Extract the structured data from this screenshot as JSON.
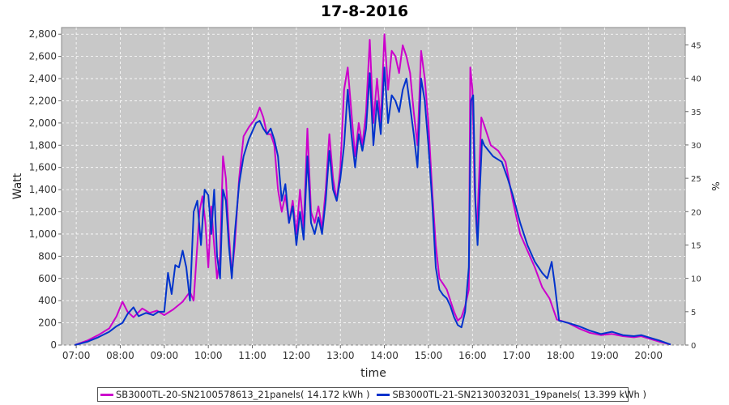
{
  "chart_data": {
    "type": "line",
    "title": "17-8-2016",
    "xlabel": "time",
    "ylabel": "Watt",
    "y2label": "%",
    "x_ticks": [
      "07:00",
      "08:00",
      "09:00",
      "10:00",
      "11:00",
      "12:00",
      "13:00",
      "14:00",
      "15:00",
      "16:00",
      "17:00",
      "18:00",
      "19:00",
      "20:00"
    ],
    "y_ticks": [
      "0",
      "200",
      "400",
      "600",
      "800",
      "1,000",
      "1,200",
      "1,400",
      "1,600",
      "1,800",
      "2,000",
      "2,200",
      "2,400",
      "2,600",
      "2,800"
    ],
    "y2_ticks": [
      "0",
      "5",
      "10",
      "15",
      "20",
      "25",
      "30",
      "35",
      "40",
      "45"
    ],
    "xlim": [
      "06:40",
      "20:50"
    ],
    "ylim": [
      0,
      2860
    ],
    "y2lim": [
      0,
      47.6
    ],
    "grid": true,
    "legend_position": "bottom",
    "background": "#c8c8c8",
    "series": [
      {
        "name": "SB3000TL-20-SN2100578613_21panels( 14.172 kWh )",
        "color": "#cc00cc",
        "points": [
          [
            "06:58",
            0
          ],
          [
            "07:15",
            40
          ],
          [
            "07:30",
            90
          ],
          [
            "07:45",
            150
          ],
          [
            "07:55",
            260
          ],
          [
            "08:03",
            390
          ],
          [
            "08:10",
            300
          ],
          [
            "08:18",
            250
          ],
          [
            "08:30",
            330
          ],
          [
            "08:40",
            290
          ],
          [
            "08:50",
            310
          ],
          [
            "09:00",
            270
          ],
          [
            "09:12",
            320
          ],
          [
            "09:25",
            390
          ],
          [
            "09:35",
            480
          ],
          [
            "09:40",
            400
          ],
          [
            "09:45",
            900
          ],
          [
            "09:48",
            1200
          ],
          [
            "09:52",
            1340
          ],
          [
            "09:56",
            1100
          ],
          [
            "10:00",
            700
          ],
          [
            "10:04",
            1250
          ],
          [
            "10:08",
            900
          ],
          [
            "10:12",
            600
          ],
          [
            "10:16",
            800
          ],
          [
            "10:20",
            1700
          ],
          [
            "10:24",
            1500
          ],
          [
            "10:28",
            1000
          ],
          [
            "10:32",
            640
          ],
          [
            "10:36",
            900
          ],
          [
            "10:42",
            1500
          ],
          [
            "10:48",
            1880
          ],
          [
            "10:55",
            1960
          ],
          [
            "11:05",
            2050
          ],
          [
            "11:10",
            2140
          ],
          [
            "11:15",
            2050
          ],
          [
            "11:20",
            1900
          ],
          [
            "11:25",
            1900
          ],
          [
            "11:30",
            1800
          ],
          [
            "11:35",
            1400
          ],
          [
            "11:40",
            1200
          ],
          [
            "11:45",
            1350
          ],
          [
            "11:50",
            1100
          ],
          [
            "11:55",
            1300
          ],
          [
            "12:00",
            1000
          ],
          [
            "12:05",
            1400
          ],
          [
            "12:10",
            1050
          ],
          [
            "12:15",
            1950
          ],
          [
            "12:20",
            1200
          ],
          [
            "12:25",
            1100
          ],
          [
            "12:30",
            1250
          ],
          [
            "12:35",
            1050
          ],
          [
            "12:40",
            1400
          ],
          [
            "12:45",
            1900
          ],
          [
            "12:50",
            1500
          ],
          [
            "12:55",
            1300
          ],
          [
            "13:00",
            1600
          ],
          [
            "13:05",
            2300
          ],
          [
            "13:10",
            2500
          ],
          [
            "13:15",
            2100
          ],
          [
            "13:20",
            1700
          ],
          [
            "13:25",
            2000
          ],
          [
            "13:30",
            1800
          ],
          [
            "13:35",
            2100
          ],
          [
            "13:40",
            2750
          ],
          [
            "13:45",
            2000
          ],
          [
            "13:50",
            2400
          ],
          [
            "13:55",
            2000
          ],
          [
            "14:00",
            2800
          ],
          [
            "14:05",
            2300
          ],
          [
            "14:10",
            2650
          ],
          [
            "14:15",
            2600
          ],
          [
            "14:20",
            2450
          ],
          [
            "14:25",
            2700
          ],
          [
            "14:30",
            2600
          ],
          [
            "14:35",
            2450
          ],
          [
            "14:40",
            2100
          ],
          [
            "14:45",
            1800
          ],
          [
            "14:50",
            2650
          ],
          [
            "14:55",
            2400
          ],
          [
            "15:00",
            2000
          ],
          [
            "15:05",
            1400
          ],
          [
            "15:10",
            900
          ],
          [
            "15:15",
            600
          ],
          [
            "15:20",
            550
          ],
          [
            "15:25",
            500
          ],
          [
            "15:30",
            400
          ],
          [
            "15:35",
            300
          ],
          [
            "15:40",
            220
          ],
          [
            "15:45",
            250
          ],
          [
            "15:50",
            350
          ],
          [
            "15:55",
            500
          ],
          [
            "15:57",
            2500
          ],
          [
            "16:00",
            2300
          ],
          [
            "16:03",
            1400
          ],
          [
            "16:06",
            1000
          ],
          [
            "16:09",
            1500
          ],
          [
            "16:12",
            2050
          ],
          [
            "16:15",
            2000
          ],
          [
            "16:20",
            1900
          ],
          [
            "16:25",
            1800
          ],
          [
            "16:35",
            1750
          ],
          [
            "16:45",
            1650
          ],
          [
            "16:55",
            1300
          ],
          [
            "17:05",
            1000
          ],
          [
            "17:15",
            850
          ],
          [
            "17:25",
            700
          ],
          [
            "17:35",
            520
          ],
          [
            "17:45",
            420
          ],
          [
            "17:55",
            230
          ],
          [
            "18:10",
            200
          ],
          [
            "18:25",
            150
          ],
          [
            "18:40",
            110
          ],
          [
            "18:55",
            90
          ],
          [
            "19:10",
            100
          ],
          [
            "19:25",
            80
          ],
          [
            "19:40",
            70
          ],
          [
            "19:50",
            80
          ],
          [
            "20:00",
            60
          ],
          [
            "20:15",
            30
          ],
          [
            "20:30",
            5
          ]
        ]
      },
      {
        "name": "SB3000TL-21-SN2130032031_19panels( 13.399 kWh )",
        "color": "#0033cc",
        "points": [
          [
            "06:58",
            0
          ],
          [
            "07:15",
            30
          ],
          [
            "07:30",
            70
          ],
          [
            "07:45",
            120
          ],
          [
            "07:55",
            170
          ],
          [
            "08:03",
            200
          ],
          [
            "08:10",
            280
          ],
          [
            "08:18",
            340
          ],
          [
            "08:25",
            260
          ],
          [
            "08:35",
            290
          ],
          [
            "08:45",
            270
          ],
          [
            "08:52",
            300
          ],
          [
            "09:00",
            300
          ],
          [
            "09:05",
            650
          ],
          [
            "09:10",
            460
          ],
          [
            "09:15",
            720
          ],
          [
            "09:20",
            700
          ],
          [
            "09:25",
            850
          ],
          [
            "09:30",
            700
          ],
          [
            "09:35",
            400
          ],
          [
            "09:40",
            1200
          ],
          [
            "09:45",
            1300
          ],
          [
            "09:50",
            900
          ],
          [
            "09:55",
            1400
          ],
          [
            "10:00",
            1350
          ],
          [
            "10:04",
            1000
          ],
          [
            "10:08",
            1400
          ],
          [
            "10:12",
            800
          ],
          [
            "10:16",
            600
          ],
          [
            "10:20",
            1400
          ],
          [
            "10:24",
            1300
          ],
          [
            "10:28",
            900
          ],
          [
            "10:32",
            600
          ],
          [
            "10:36",
            1000
          ],
          [
            "10:42",
            1450
          ],
          [
            "10:48",
            1700
          ],
          [
            "10:55",
            1850
          ],
          [
            "11:05",
            2000
          ],
          [
            "11:10",
            2020
          ],
          [
            "11:15",
            1950
          ],
          [
            "11:20",
            1900
          ],
          [
            "11:25",
            1950
          ],
          [
            "11:30",
            1850
          ],
          [
            "11:35",
            1700
          ],
          [
            "11:40",
            1300
          ],
          [
            "11:45",
            1450
          ],
          [
            "11:50",
            1100
          ],
          [
            "11:55",
            1250
          ],
          [
            "12:00",
            900
          ],
          [
            "12:05",
            1200
          ],
          [
            "12:10",
            950
          ],
          [
            "12:15",
            1700
          ],
          [
            "12:20",
            1100
          ],
          [
            "12:25",
            1000
          ],
          [
            "12:30",
            1150
          ],
          [
            "12:35",
            1000
          ],
          [
            "12:40",
            1300
          ],
          [
            "12:45",
            1750
          ],
          [
            "12:50",
            1400
          ],
          [
            "12:55",
            1300
          ],
          [
            "13:00",
            1500
          ],
          [
            "13:05",
            1800
          ],
          [
            "13:10",
            2300
          ],
          [
            "13:15",
            1900
          ],
          [
            "13:20",
            1600
          ],
          [
            "13:25",
            1900
          ],
          [
            "13:30",
            1750
          ],
          [
            "13:35",
            1950
          ],
          [
            "13:40",
            2450
          ],
          [
            "13:45",
            1800
          ],
          [
            "13:50",
            2200
          ],
          [
            "13:55",
            1900
          ],
          [
            "14:00",
            2500
          ],
          [
            "14:05",
            2000
          ],
          [
            "14:10",
            2250
          ],
          [
            "14:15",
            2200
          ],
          [
            "14:20",
            2100
          ],
          [
            "14:25",
            2300
          ],
          [
            "14:30",
            2400
          ],
          [
            "14:35",
            2150
          ],
          [
            "14:40",
            1900
          ],
          [
            "14:45",
            1600
          ],
          [
            "14:50",
            2400
          ],
          [
            "14:55",
            2200
          ],
          [
            "15:00",
            1800
          ],
          [
            "15:05",
            1300
          ],
          [
            "15:10",
            700
          ],
          [
            "15:15",
            500
          ],
          [
            "15:20",
            450
          ],
          [
            "15:25",
            420
          ],
          [
            "15:30",
            350
          ],
          [
            "15:35",
            250
          ],
          [
            "15:40",
            180
          ],
          [
            "15:45",
            160
          ],
          [
            "15:50",
            300
          ],
          [
            "15:55",
            700
          ],
          [
            "15:58",
            2200
          ],
          [
            "16:01",
            2250
          ],
          [
            "16:04",
            1300
          ],
          [
            "16:07",
            900
          ],
          [
            "16:10",
            1400
          ],
          [
            "16:13",
            1850
          ],
          [
            "16:16",
            1800
          ],
          [
            "16:22",
            1750
          ],
          [
            "16:28",
            1700
          ],
          [
            "16:40",
            1650
          ],
          [
            "16:48",
            1500
          ],
          [
            "16:55",
            1350
          ],
          [
            "17:05",
            1100
          ],
          [
            "17:15",
            900
          ],
          [
            "17:25",
            750
          ],
          [
            "17:35",
            650
          ],
          [
            "17:42",
            600
          ],
          [
            "17:48",
            750
          ],
          [
            "17:52",
            550
          ],
          [
            "17:58",
            220
          ],
          [
            "18:10",
            200
          ],
          [
            "18:25",
            170
          ],
          [
            "18:40",
            130
          ],
          [
            "18:55",
            100
          ],
          [
            "19:10",
            120
          ],
          [
            "19:25",
            90
          ],
          [
            "19:40",
            80
          ],
          [
            "19:50",
            90
          ],
          [
            "20:00",
            70
          ],
          [
            "20:15",
            40
          ],
          [
            "20:30",
            5
          ]
        ]
      }
    ]
  }
}
